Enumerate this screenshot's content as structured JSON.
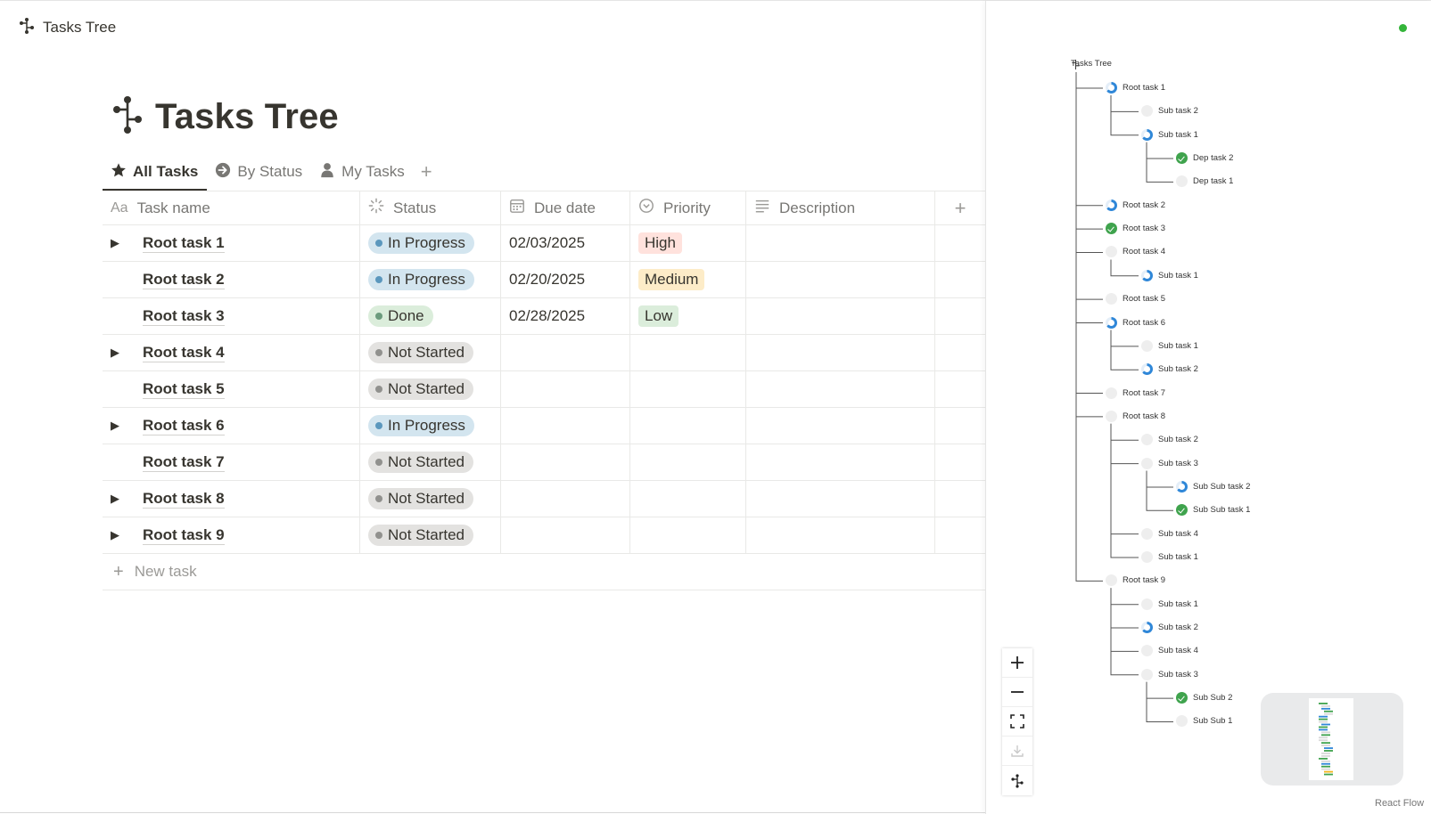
{
  "topbar": {
    "title": "Tasks Tree",
    "icon": "tree-icon"
  },
  "page": {
    "title": "Tasks Tree",
    "icon": "tree-icon"
  },
  "tabs": [
    {
      "label": "All Tasks",
      "icon": "star-icon",
      "active": true
    },
    {
      "label": "By Status",
      "icon": "arrow-circle-icon",
      "active": false
    },
    {
      "label": "My Tasks",
      "icon": "person-icon",
      "active": false
    }
  ],
  "tab_add": "+",
  "columns": {
    "name_prefix": "Aa",
    "name": "Task name",
    "status": "Status",
    "due": "Due date",
    "priority": "Priority",
    "description": "Description",
    "add": "+"
  },
  "rows": [
    {
      "name": "Root task 1",
      "toggle": "▶",
      "status": "In Progress",
      "due": "02/03/2025",
      "priority": "High"
    },
    {
      "name": "Root task 2",
      "toggle": "",
      "status": "In Progress",
      "due": "02/20/2025",
      "priority": "Medium"
    },
    {
      "name": "Root task 3",
      "toggle": "",
      "status": "Done",
      "due": "02/28/2025",
      "priority": "Low"
    },
    {
      "name": "Root task 4",
      "toggle": "▶",
      "status": "Not Started",
      "due": "",
      "priority": ""
    },
    {
      "name": "Root task 5",
      "toggle": "",
      "status": "Not Started",
      "due": "",
      "priority": ""
    },
    {
      "name": "Root task 6",
      "toggle": "▶",
      "status": "In Progress",
      "due": "",
      "priority": ""
    },
    {
      "name": "Root task 7",
      "toggle": "",
      "status": "Not Started",
      "due": "",
      "priority": ""
    },
    {
      "name": "Root task 8",
      "toggle": "▶",
      "status": "Not Started",
      "due": "",
      "priority": ""
    },
    {
      "name": "Root task 9",
      "toggle": "▶",
      "status": "Not Started",
      "due": "",
      "priority": ""
    }
  ],
  "new_task": {
    "plus": "+",
    "label": "New task"
  },
  "status_colors": {
    "In Progress": {
      "bg": "#d3e5ef",
      "dot": "#5b97bd"
    },
    "Done": {
      "bg": "#dbeddb",
      "dot": "#6c9b7d"
    },
    "Not Started": {
      "bg": "#e3e2e0",
      "dot": "#91918e"
    }
  },
  "priority_colors": {
    "High": "#ffe2dd",
    "Medium": "#fdecc8",
    "Low": "#dbeddb"
  },
  "tree": {
    "root_label": "Tasks Tree",
    "nodes": [
      {
        "label": "Root task 1",
        "depth": 1,
        "status": "ip"
      },
      {
        "label": "Sub task 2",
        "depth": 2,
        "status": "ns"
      },
      {
        "label": "Sub task 1",
        "depth": 2,
        "status": "ip"
      },
      {
        "label": "Dep task 2",
        "depth": 3,
        "status": "dn"
      },
      {
        "label": "Dep task 1",
        "depth": 3,
        "status": "ns"
      },
      {
        "label": "Root task 2",
        "depth": 1,
        "status": "ip"
      },
      {
        "label": "Root task 3",
        "depth": 1,
        "status": "dn"
      },
      {
        "label": "Root task 4",
        "depth": 1,
        "status": "ns"
      },
      {
        "label": "Sub task 1",
        "depth": 2,
        "status": "ip"
      },
      {
        "label": "Root task 5",
        "depth": 1,
        "status": "ns"
      },
      {
        "label": "Root task 6",
        "depth": 1,
        "status": "ip"
      },
      {
        "label": "Sub task 1",
        "depth": 2,
        "status": "ns"
      },
      {
        "label": "Sub task 2",
        "depth": 2,
        "status": "ip"
      },
      {
        "label": "Root task 7",
        "depth": 1,
        "status": "ns"
      },
      {
        "label": "Root task 8",
        "depth": 1,
        "status": "ns"
      },
      {
        "label": "Sub task 2",
        "depth": 2,
        "status": "ns"
      },
      {
        "label": "Sub task 3",
        "depth": 2,
        "status": "ns"
      },
      {
        "label": "Sub Sub task 2",
        "depth": 3,
        "status": "ip"
      },
      {
        "label": "Sub Sub task 1",
        "depth": 3,
        "status": "dn"
      },
      {
        "label": "Sub task 4",
        "depth": 2,
        "status": "ns"
      },
      {
        "label": "Sub task 1",
        "depth": 2,
        "status": "ns"
      },
      {
        "label": "Root task 9",
        "depth": 1,
        "status": "ns"
      },
      {
        "label": "Sub task 1",
        "depth": 2,
        "status": "ns"
      },
      {
        "label": "Sub task 2",
        "depth": 2,
        "status": "ip"
      },
      {
        "label": "Sub task 4",
        "depth": 2,
        "status": "ns"
      },
      {
        "label": "Sub task 3",
        "depth": 2,
        "status": "ns"
      },
      {
        "label": "Sub Sub 2",
        "depth": 3,
        "status": "dn"
      },
      {
        "label": "Sub Sub 1",
        "depth": 3,
        "status": "ns"
      }
    ]
  },
  "controls": [
    {
      "name": "zoom-in-button",
      "glyph": "+"
    },
    {
      "name": "zoom-out-button",
      "glyph": "—"
    },
    {
      "name": "fit-view-button",
      "glyph": "fit"
    },
    {
      "name": "download-button",
      "glyph": "download"
    },
    {
      "name": "tree-layout-button",
      "glyph": "tree"
    }
  ],
  "attribution": "React Flow"
}
